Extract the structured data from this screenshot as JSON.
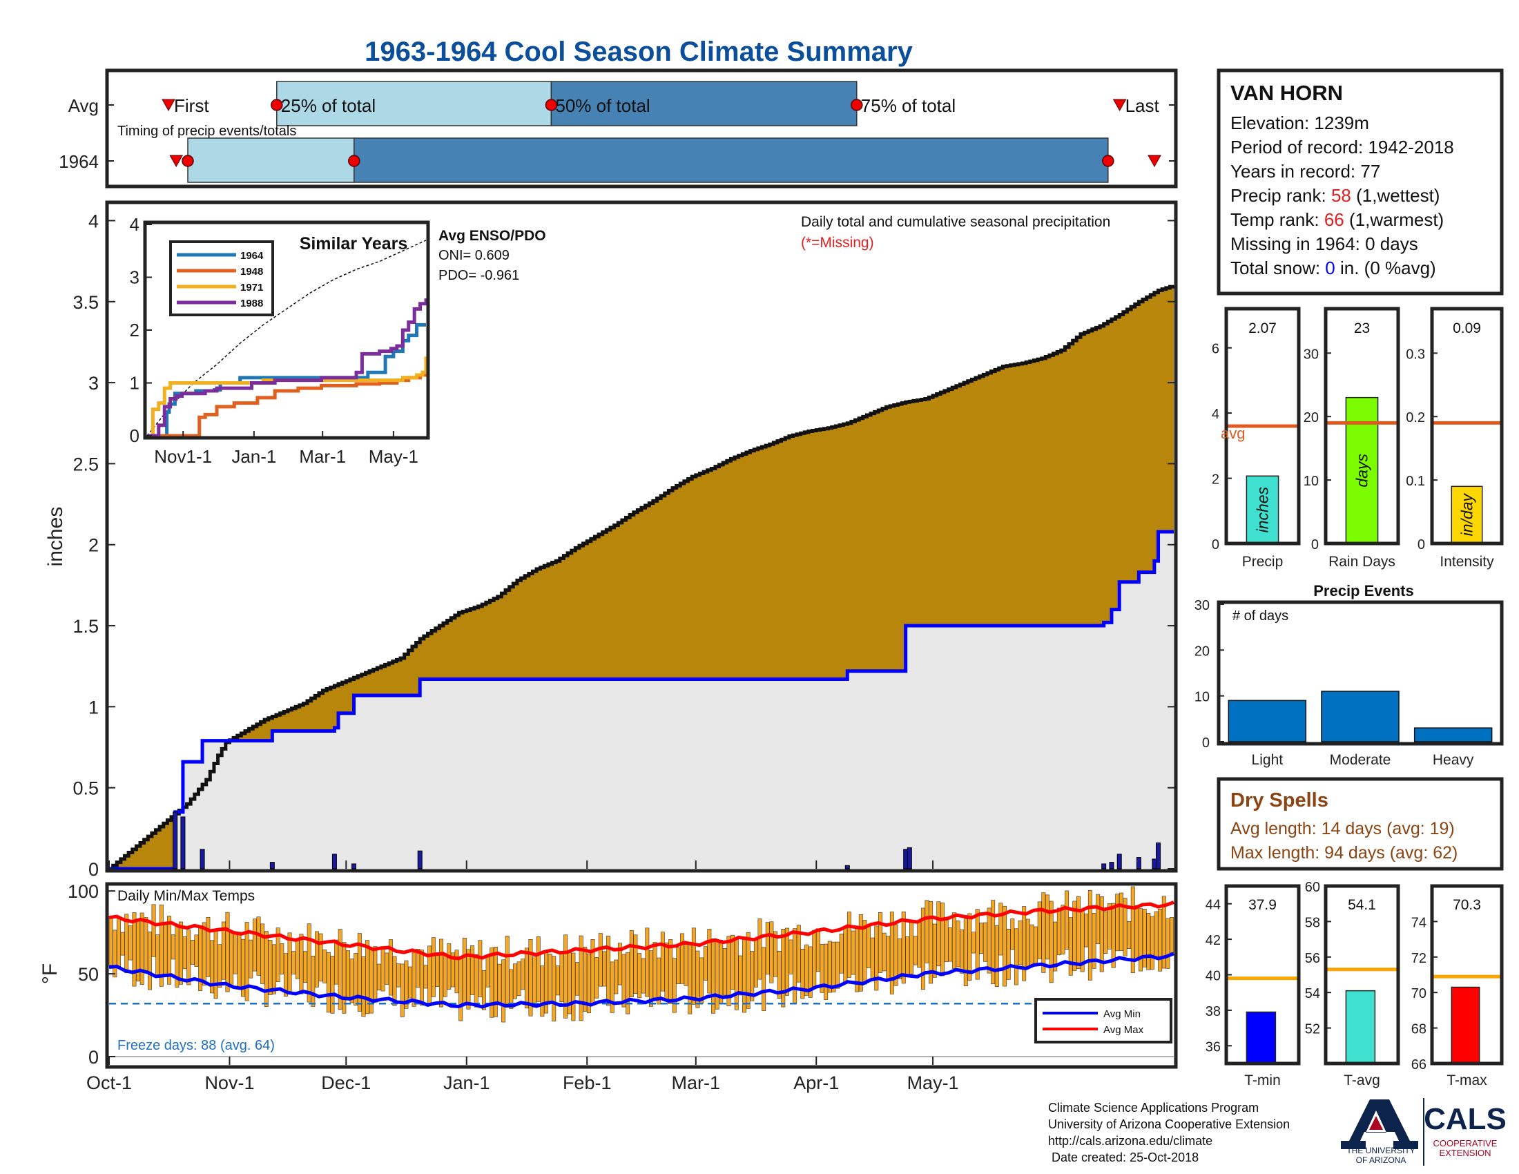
{
  "title": "1963-1964 Cool Season Climate Summary",
  "colors": {
    "title": "#0b4f9a",
    "cumulative_fill": "#b8860b",
    "avg_fill": "#e8e8e8",
    "avg_line": "#0000ff",
    "timing_light": "#add8e6",
    "timing_dark": "#4682b4",
    "marker_red": "#ee0000",
    "ref_line": "#e05a20",
    "precip_bar": "#40e0d0",
    "raindays_bar": "#7cfc00",
    "intensity_bar": "#ffd700",
    "events_bar": "#0070c0",
    "temp_bar": "#f5a623",
    "temp_avg_max": "#ff0000",
    "temp_avg_min": "#0000ff",
    "freeze_line": "#1f6fc0",
    "dryspell_text": "#8b4513",
    "tmin_bar": "#0000ff",
    "tavg_bar": "#40e0d0",
    "tmax_bar": "#ff0000",
    "temp_ref": "#ffa500"
  },
  "timing": {
    "row_labels": [
      "Avg",
      "1964"
    ],
    "subtitle": "Timing of precip events/totals",
    "labels": {
      "first": "First",
      "p25": "25% of total",
      "p50": "50% of total",
      "p75": "75% of total",
      "last": "Last"
    },
    "avg": {
      "first": 15,
      "p25": 43,
      "p50": 114,
      "p75": 193,
      "last": 261
    },
    "y1964": {
      "first": 17,
      "p25": 20,
      "p50": 63,
      "p75": 258,
      "last": 270
    },
    "xlim": [
      0,
      275
    ]
  },
  "station": {
    "name": "VAN HORN",
    "elevation_label": "Elevation: 1239m",
    "period_label": "Period of record: 1942-2018",
    "years_label": "Years in record: 77",
    "precip_rank_prefix": "Precip rank: ",
    "precip_rank_value": "58",
    "precip_rank_suffix": " (1,wettest)",
    "temp_rank_prefix": "Temp rank: ",
    "temp_rank_value": "66",
    "temp_rank_suffix": " (1,warmest)",
    "missing_label": "Missing in 1964: 0 days",
    "snow_prefix": "Total snow: ",
    "snow_value": "0",
    "snow_suffix": " in. (0 %avg)"
  },
  "chart_data": [
    {
      "type": "area",
      "name": "precip-main",
      "annotation": "Daily total and cumulative seasonal precipitation",
      "annotation_missing": "(*=Missing)",
      "ylabel": "inches",
      "ylim": [
        0,
        4.1
      ],
      "yticks": [
        0,
        0.5,
        1,
        1.5,
        2,
        2.5,
        3,
        3.5,
        4
      ],
      "ytick_labels": [
        "0",
        "0.5",
        "1",
        "1.5",
        "2",
        "2.5",
        "3",
        "3.5",
        "4"
      ],
      "xlim": [
        0,
        274
      ],
      "xticks": [
        0,
        31,
        61,
        92,
        123,
        151,
        182,
        212
      ],
      "xtick_labels": [
        "Oct-1",
        "Nov-1",
        "Dec-1",
        "Jan-1",
        "Feb-1",
        "Mar-1",
        "Apr-1",
        "May-1"
      ],
      "cumulative_avg": [
        [
          0,
          0
        ],
        [
          5,
          0.1
        ],
        [
          10,
          0.2
        ],
        [
          15,
          0.3
        ],
        [
          20,
          0.4
        ],
        [
          25,
          0.55
        ],
        [
          28,
          0.7
        ],
        [
          30,
          0.78
        ],
        [
          35,
          0.85
        ],
        [
          40,
          0.92
        ],
        [
          45,
          0.97
        ],
        [
          50,
          1.02
        ],
        [
          55,
          1.1
        ],
        [
          60,
          1.15
        ],
        [
          65,
          1.2
        ],
        [
          70,
          1.25
        ],
        [
          75,
          1.3
        ],
        [
          80,
          1.42
        ],
        [
          85,
          1.5
        ],
        [
          90,
          1.58
        ],
        [
          95,
          1.62
        ],
        [
          100,
          1.68
        ],
        [
          105,
          1.78
        ],
        [
          110,
          1.85
        ],
        [
          115,
          1.9
        ],
        [
          120,
          1.98
        ],
        [
          125,
          2.05
        ],
        [
          130,
          2.12
        ],
        [
          135,
          2.2
        ],
        [
          140,
          2.27
        ],
        [
          145,
          2.35
        ],
        [
          150,
          2.42
        ],
        [
          155,
          2.47
        ],
        [
          160,
          2.53
        ],
        [
          165,
          2.58
        ],
        [
          170,
          2.62
        ],
        [
          175,
          2.67
        ],
        [
          180,
          2.7
        ],
        [
          185,
          2.72
        ],
        [
          190,
          2.75
        ],
        [
          195,
          2.8
        ],
        [
          200,
          2.85
        ],
        [
          205,
          2.88
        ],
        [
          210,
          2.9
        ],
        [
          215,
          2.95
        ],
        [
          220,
          3.0
        ],
        [
          225,
          3.05
        ],
        [
          230,
          3.1
        ],
        [
          235,
          3.12
        ],
        [
          240,
          3.15
        ],
        [
          245,
          3.2
        ],
        [
          250,
          3.3
        ],
        [
          255,
          3.35
        ],
        [
          260,
          3.42
        ],
        [
          265,
          3.5
        ],
        [
          270,
          3.57
        ],
        [
          274,
          3.6
        ]
      ],
      "cumulative_1964": [
        [
          0,
          0
        ],
        [
          17,
          0
        ],
        [
          17,
          0.35
        ],
        [
          19,
          0.35
        ],
        [
          19,
          0.66
        ],
        [
          24,
          0.66
        ],
        [
          24,
          0.79
        ],
        [
          42,
          0.79
        ],
        [
          42,
          0.85
        ],
        [
          58,
          0.85
        ],
        [
          58,
          0.87
        ],
        [
          59,
          0.87
        ],
        [
          59,
          0.96
        ],
        [
          63,
          0.96
        ],
        [
          63,
          1.07
        ],
        [
          80,
          1.07
        ],
        [
          80,
          1.17
        ],
        [
          190,
          1.17
        ],
        [
          190,
          1.22
        ],
        [
          205,
          1.22
        ],
        [
          205,
          1.5
        ],
        [
          256,
          1.5
        ],
        [
          256,
          1.52
        ],
        [
          258,
          1.52
        ],
        [
          258,
          1.6
        ],
        [
          260,
          1.6
        ],
        [
          260,
          1.77
        ],
        [
          265,
          1.77
        ],
        [
          265,
          1.83
        ],
        [
          269,
          1.83
        ],
        [
          269,
          1.9
        ],
        [
          270,
          1.9
        ],
        [
          270,
          2.08
        ],
        [
          274,
          2.08
        ]
      ],
      "daily_bars": [
        [
          17,
          0.35
        ],
        [
          19,
          0.32
        ],
        [
          24,
          0.12
        ],
        [
          42,
          0.04
        ],
        [
          58,
          0.09
        ],
        [
          63,
          0.03
        ],
        [
          80,
          0.11
        ],
        [
          190,
          0.02
        ],
        [
          205,
          0.12
        ],
        [
          206,
          0.13
        ],
        [
          256,
          0.03
        ],
        [
          258,
          0.04
        ],
        [
          260,
          0.09
        ],
        [
          265,
          0.07
        ],
        [
          269,
          0.06
        ],
        [
          270,
          0.16
        ]
      ]
    },
    {
      "type": "line",
      "name": "similar-years",
      "title": "Similar Years",
      "ylim": [
        0,
        4
      ],
      "yticks": [
        0,
        1,
        2,
        3,
        4
      ],
      "ytick_labels": [
        "0",
        "1",
        "2",
        "3",
        "4"
      ],
      "xlim": [
        0,
        240
      ],
      "xticks": [
        31,
        92,
        151,
        212
      ],
      "xtick_labels": [
        "Nov1-1",
        "Jan-1",
        "Mar-1",
        "May-1"
      ],
      "series": [
        {
          "name": "1964",
          "color": "#1f77b4",
          "x": [
            0,
            15,
            17,
            19,
            24,
            42,
            58,
            63,
            80,
            190,
            205,
            212,
            220,
            225,
            232,
            240
          ],
          "y": [
            0,
            0,
            0.45,
            0.6,
            0.8,
            0.85,
            0.87,
            1.0,
            1.1,
            1.2,
            1.5,
            1.6,
            1.8,
            1.9,
            2.1,
            2.1
          ]
        },
        {
          "name": "1948",
          "color": "#e06020",
          "x": [
            0,
            40,
            45,
            50,
            60,
            75,
            95,
            110,
            130,
            150,
            180,
            200,
            215,
            225,
            235,
            240
          ],
          "y": [
            0,
            0,
            0.35,
            0.4,
            0.55,
            0.62,
            0.72,
            0.85,
            0.9,
            0.95,
            0.98,
            1.0,
            1.05,
            1.1,
            1.15,
            1.2
          ]
        },
        {
          "name": "1971",
          "color": "#f2b01e",
          "x": [
            0,
            5,
            10,
            15,
            20,
            40,
            60,
            100,
            140,
            180,
            220,
            232,
            237,
            240
          ],
          "y": [
            0,
            0.5,
            0.62,
            0.9,
            1.0,
            1.0,
            1.0,
            1.05,
            1.05,
            1.05,
            1.1,
            1.15,
            1.2,
            1.5
          ]
        },
        {
          "name": "1988",
          "color": "#7b2d9b",
          "x": [
            0,
            10,
            15,
            20,
            25,
            30,
            50,
            60,
            90,
            110,
            150,
            180,
            185,
            200,
            210,
            215,
            220,
            225,
            230,
            235,
            240
          ],
          "y": [
            0,
            0.2,
            0.55,
            0.7,
            0.75,
            0.8,
            0.85,
            0.9,
            1.0,
            1.05,
            1.1,
            1.2,
            1.55,
            1.6,
            1.65,
            1.7,
            2.0,
            2.15,
            2.4,
            2.5,
            2.6
          ]
        }
      ],
      "avg_cumulative_x": [
        0,
        20,
        40,
        60,
        80,
        100,
        120,
        140,
        160,
        180,
        200,
        220,
        240
      ],
      "avg_cumulative_y": [
        0,
        0.55,
        1.0,
        1.35,
        1.75,
        2.1,
        2.4,
        2.7,
        2.95,
        3.15,
        3.3,
        3.5,
        3.7
      ]
    },
    {
      "type": "bar",
      "name": "precip-total",
      "label": "Precip",
      "unit": "inches",
      "value": 2.07,
      "value_label": "2.07",
      "avg": 3.6,
      "avg_label": "avg",
      "ylim": [
        0,
        7.2
      ],
      "yticks": [
        0,
        2,
        4,
        6
      ],
      "ytick_labels": [
        "0",
        "2",
        "4",
        "6"
      ]
    },
    {
      "type": "bar",
      "name": "rain-days",
      "label": "Rain Days",
      "unit": "days",
      "value": 23,
      "value_label": "23",
      "avg": 19,
      "ylim": [
        0,
        37
      ],
      "yticks": [
        0,
        10,
        20,
        30
      ],
      "ytick_labels": [
        "0",
        "10",
        "20",
        "30"
      ]
    },
    {
      "type": "bar",
      "name": "intensity",
      "label": "Intensity",
      "unit": "in/day",
      "value": 0.09,
      "value_label": "0.09",
      "avg": 0.19,
      "ylim": [
        0,
        0.37
      ],
      "yticks": [
        0,
        0.1,
        0.2,
        0.3
      ],
      "ytick_labels": [
        "0",
        "0.1",
        "0.2",
        "0.3"
      ]
    },
    {
      "type": "bar",
      "name": "precip-events",
      "title": "Precip Events",
      "annotation": "# of days",
      "categories": [
        "Light",
        "Moderate",
        "Heavy"
      ],
      "values": [
        9,
        11,
        3
      ],
      "ylim": [
        0,
        30
      ],
      "yticks": [
        0,
        10,
        20,
        30
      ],
      "ytick_labels": [
        "0",
        "10",
        "20",
        "30"
      ]
    },
    {
      "type": "bar",
      "name": "daily-temps",
      "title": "Daily Min/Max Temps",
      "ylabel": "°F",
      "ylim": [
        -5,
        103
      ],
      "yticks": [
        0,
        50,
        100
      ],
      "ytick_labels": [
        "0",
        "50",
        "100"
      ],
      "freeze_line": 32,
      "freeze_label": "Freeze days: 88 (avg. 64)",
      "legend": [
        "Avg Min",
        "Avg Max"
      ],
      "avg_max": [
        [
          0,
          84
        ],
        [
          30,
          76
        ],
        [
          60,
          68
        ],
        [
          90,
          60
        ],
        [
          120,
          64
        ],
        [
          150,
          68
        ],
        [
          180,
          75
        ],
        [
          210,
          83
        ],
        [
          240,
          88
        ],
        [
          274,
          92
        ]
      ],
      "avg_min": [
        [
          0,
          54
        ],
        [
          30,
          43
        ],
        [
          60,
          36
        ],
        [
          90,
          31
        ],
        [
          120,
          32
        ],
        [
          150,
          35
        ],
        [
          180,
          41
        ],
        [
          210,
          50
        ],
        [
          240,
          55
        ],
        [
          274,
          61
        ]
      ],
      "seeds": {
        "max": [
          82,
          72,
          62,
          58,
          62,
          68,
          76,
          85,
          90,
          94
        ],
        "min": [
          52,
          40,
          32,
          28,
          30,
          34,
          40,
          50,
          56,
          62
        ]
      }
    },
    {
      "type": "bar",
      "name": "t-min",
      "label": "T-min",
      "value": 37.9,
      "value_label": "37.9",
      "avg": 39.8,
      "ylim": [
        35,
        45
      ],
      "yticks": [
        36,
        38,
        40,
        42,
        44
      ],
      "ytick_labels": [
        "36",
        "38",
        "40",
        "42",
        "44"
      ]
    },
    {
      "type": "bar",
      "name": "t-avg",
      "label": "T-avg",
      "value": 54.1,
      "value_label": "54.1",
      "avg": 55.3,
      "ylim": [
        50,
        60
      ],
      "yticks": [
        52,
        54,
        56,
        58,
        60
      ],
      "ytick_labels": [
        "52",
        "54",
        "56",
        "58",
        "60"
      ]
    },
    {
      "type": "bar",
      "name": "t-max",
      "label": "T-max",
      "value": 70.3,
      "value_label": "70.3",
      "avg": 70.9,
      "ylim": [
        66,
        76
      ],
      "yticks": [
        66,
        68,
        70,
        72,
        74
      ],
      "ytick_labels": [
        "66",
        "68",
        "70",
        "72",
        "74"
      ]
    }
  ],
  "enso": {
    "title": "Avg ENSO/PDO",
    "oni": "ONI= 0.609",
    "pdo": "PDO= -0.961"
  },
  "dry_spells": {
    "title": "Dry Spells",
    "avg_length": "Avg length: 14 days (avg: 19)",
    "max_length": "Max length: 94 days (avg: 62)"
  },
  "footer": {
    "line1": "Climate Science Applications Program",
    "line2": "University of Arizona Cooperative Extension",
    "line3": "http://cals.arizona.edu/climate",
    "line4": " Date created: 25-Oct-2018"
  },
  "logos": {
    "ua_letter": "A",
    "ua_line1": "THE UNIVERSITY",
    "ua_line2": "OF ARIZONA",
    "cals": "CALS",
    "cals_line1": "COOPERATIVE",
    "cals_line2": "EXTENSION"
  }
}
